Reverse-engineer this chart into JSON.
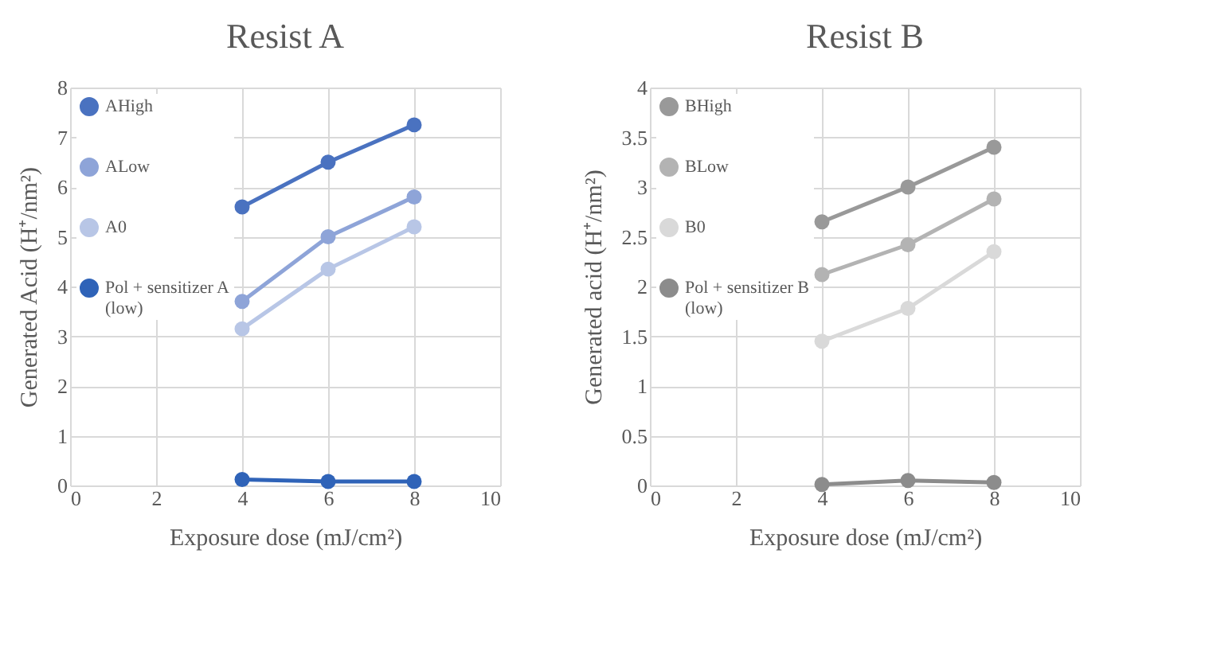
{
  "chart_data": [
    {
      "type": "line",
      "title": "Resist A",
      "xlabel": "Exposure dose (mJ/cm²)",
      "ylabel": "Generated Acid (H⁺/nm²)",
      "x": [
        4,
        6,
        8
      ],
      "xlim": [
        0,
        10
      ],
      "xticks": [
        0,
        2,
        4,
        6,
        8,
        10
      ],
      "ylim": [
        0,
        8
      ],
      "yticks": [
        0,
        1,
        2,
        3,
        4,
        5,
        6,
        7,
        8
      ],
      "grid": true,
      "legend": "left",
      "marker": "circle",
      "series": [
        {
          "name": "AHigh",
          "color": "#4a72c0",
          "values": [
            5.6,
            6.5,
            7.25
          ]
        },
        {
          "name": "ALow",
          "color": "#8ea4d8",
          "values": [
            3.7,
            5.0,
            5.8
          ]
        },
        {
          "name": "A0",
          "color": "#b8c6e6",
          "values": [
            3.15,
            4.35,
            5.2
          ]
        },
        {
          "name": "Pol + sensitizer A (low)",
          "color": "#2f63b8",
          "values": [
            0.12,
            0.08,
            0.08
          ]
        }
      ]
    },
    {
      "type": "line",
      "title": "Resist B",
      "xlabel": "Exposure dose (mJ/cm²)",
      "ylabel": "Generated acid (H⁺/nm²)",
      "x": [
        4,
        6,
        8
      ],
      "xlim": [
        0,
        10
      ],
      "xticks": [
        0,
        2,
        4,
        6,
        8,
        10
      ],
      "ylim": [
        0,
        4
      ],
      "yticks": [
        0,
        0.5,
        1,
        1.5,
        2,
        2.5,
        3,
        3.5,
        4
      ],
      "grid": true,
      "legend": "left",
      "marker": "circle",
      "series": [
        {
          "name": "BHigh",
          "color": "#999999",
          "values": [
            2.65,
            3.0,
            3.4
          ]
        },
        {
          "name": "BLow",
          "color": "#b3b3b3",
          "values": [
            2.12,
            2.42,
            2.88
          ]
        },
        {
          "name": "B0",
          "color": "#d9d9d9",
          "values": [
            1.45,
            1.78,
            2.35
          ]
        },
        {
          "name": "Pol + sensitizer B (low)",
          "color": "#8c8c8c",
          "values": [
            0.01,
            0.05,
            0.03
          ]
        }
      ]
    }
  ]
}
